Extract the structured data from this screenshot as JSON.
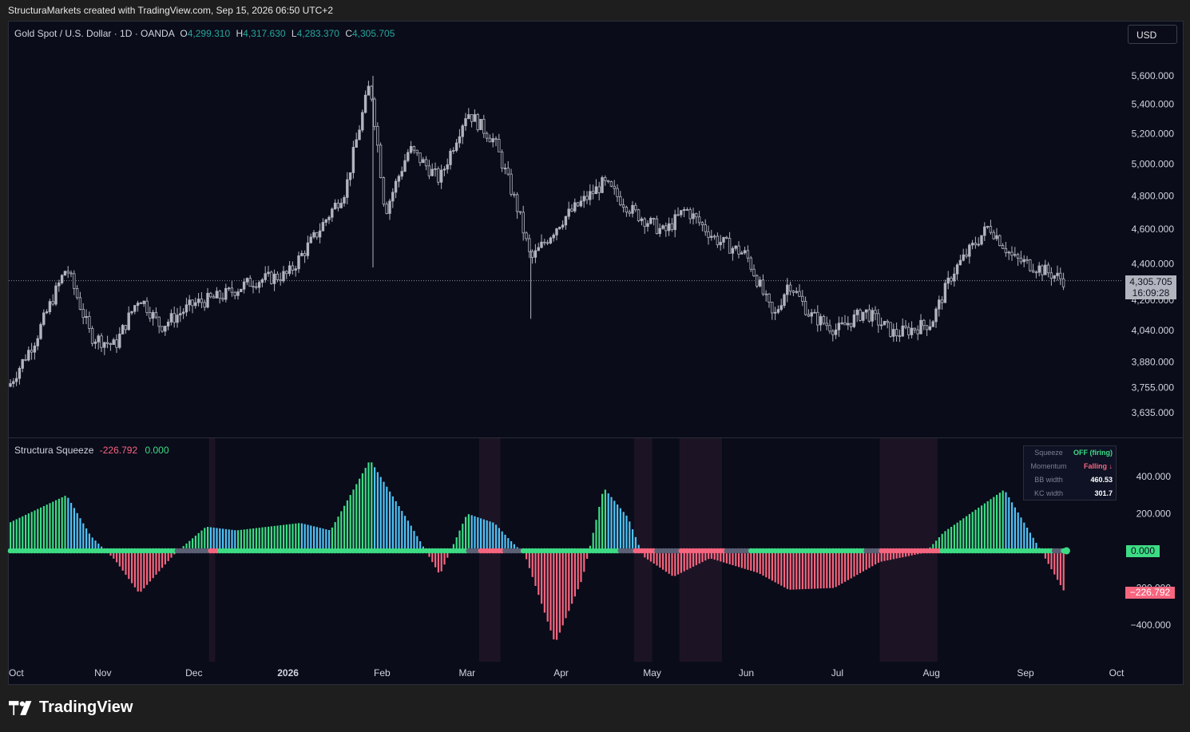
{
  "header": {
    "attribution": "StructuraMarkets created with TradingView.com, Sep 15, 2026 06:50 UTC+2"
  },
  "symbol": {
    "title": "Gold Spot / U.S. Dollar · 1D · OANDA",
    "o_label": "O",
    "o": "4,299.310",
    "h_label": "H",
    "h": "4,317.630",
    "l_label": "L",
    "l": "4,283.370",
    "c_label": "C",
    "c": "4,305.705"
  },
  "currency_button": "USD",
  "price_badge": {
    "price": "4,305.705",
    "countdown": "16:09:28"
  },
  "indicator": {
    "name": "Structura Squeeze",
    "value1": "-226.792",
    "value2": "0.000"
  },
  "indicator_badges": {
    "zero": "0.000",
    "current": "−226.792"
  },
  "squeeze_panel": {
    "rows": [
      {
        "label": "Squeeze",
        "value": "OFF (firing)",
        "color": "#3ddc84"
      },
      {
        "label": "Momentum",
        "value": "Falling ↓",
        "color": "#f7657f"
      },
      {
        "label": "BB width",
        "value": "460.53",
        "color": "#ffffff"
      },
      {
        "label": "KC width",
        "value": "301.7",
        "color": "#ffffff"
      }
    ]
  },
  "brand": {
    "name": "TradingView"
  },
  "colors": {
    "bg": "#0a0c1a",
    "candle": "#b2b5be",
    "pos_strong": "#3ddc84",
    "pos_weak": "#4fc3f7",
    "neg": "#f7657f",
    "squeeze_on": "#5c6075",
    "shade": "#1c1424"
  },
  "chart_data": [
    {
      "type": "candlestick",
      "title": "Gold Spot / U.S. Dollar · 1D · OANDA",
      "y_axis": {
        "scale": "log",
        "ticks": [
          "5,600.000",
          "5,400.000",
          "5,200.000",
          "5,000.000",
          "4,800.000",
          "4,600.000",
          "4,400.000",
          "4,200.000",
          "4,040.000",
          "3,880.000",
          "3,755.000",
          "3,635.000"
        ],
        "tick_values": [
          5600,
          5400,
          5200,
          5000,
          4800,
          4600,
          4400,
          4200,
          4040,
          3880,
          3755,
          3635
        ]
      },
      "x_axis": {
        "ticks": [
          "Oct",
          "Nov",
          "Dec",
          "2026",
          "Feb",
          "Mar",
          "Apr",
          "May",
          "Jun",
          "Jul",
          "Aug",
          "Sep",
          "Oct"
        ]
      },
      "close_path": [
        [
          "2025-10-01",
          3760
        ],
        [
          "2025-10-10",
          4000
        ],
        [
          "2025-10-20",
          4380
        ],
        [
          "2025-10-28",
          4010
        ],
        [
          "2025-11-05",
          3960
        ],
        [
          "2025-11-13",
          4220
        ],
        [
          "2025-11-20",
          4060
        ],
        [
          "2025-12-01",
          4180
        ],
        [
          "2025-12-10",
          4220
        ],
        [
          "2025-12-20",
          4300
        ],
        [
          "2026-01-01",
          4340
        ],
        [
          "2026-01-10",
          4560
        ],
        [
          "2026-01-20",
          4840
        ],
        [
          "2026-01-28",
          5550
        ],
        [
          "2026-02-02",
          4700
        ],
        [
          "2026-02-10",
          5100
        ],
        [
          "2026-02-20",
          4900
        ],
        [
          "2026-03-01",
          5350
        ],
        [
          "2026-03-10",
          5150
        ],
        [
          "2026-03-18",
          4700
        ],
        [
          "2026-03-22",
          4420
        ],
        [
          "2026-04-01",
          4650
        ],
        [
          "2026-04-15",
          4880
        ],
        [
          "2026-04-25",
          4700
        ],
        [
          "2026-05-05",
          4580
        ],
        [
          "2026-05-12",
          4720
        ],
        [
          "2026-05-22",
          4540
        ],
        [
          "2026-06-01",
          4450
        ],
        [
          "2026-06-10",
          4100
        ],
        [
          "2026-06-15",
          4300
        ],
        [
          "2026-06-22",
          4120
        ],
        [
          "2026-07-01",
          4040
        ],
        [
          "2026-07-10",
          4140
        ],
        [
          "2026-07-20",
          4020
        ],
        [
          "2026-08-01",
          4080
        ],
        [
          "2026-08-08",
          4350
        ],
        [
          "2026-08-20",
          4620
        ],
        [
          "2026-08-28",
          4430
        ],
        [
          "2026-09-05",
          4380
        ],
        [
          "2026-09-14",
          4305.705
        ]
      ]
    },
    {
      "type": "bar",
      "title": "Structura Squeeze",
      "y_axis": {
        "ticks": [
          "400.000",
          "200.000",
          "0.000",
          "−200.000",
          "−400.000"
        ],
        "tick_values": [
          400,
          200,
          0,
          -200,
          -400
        ]
      },
      "momentum_path": [
        [
          "2025-10-01",
          150
        ],
        [
          "2025-10-20",
          300
        ],
        [
          "2025-10-28",
          80
        ],
        [
          "2025-11-05",
          -50
        ],
        [
          "2025-11-13",
          -230
        ],
        [
          "2025-11-25",
          -10
        ],
        [
          "2025-12-05",
          130
        ],
        [
          "2025-12-15",
          110
        ],
        [
          "2026-01-05",
          150
        ],
        [
          "2026-01-15",
          110
        ],
        [
          "2026-01-28",
          490
        ],
        [
          "2026-02-10",
          150
        ],
        [
          "2026-02-20",
          -130
        ],
        [
          "2026-03-01",
          200
        ],
        [
          "2026-03-10",
          150
        ],
        [
          "2026-03-15",
          60
        ],
        [
          "2026-03-20",
          -20
        ],
        [
          "2026-03-30",
          -500
        ],
        [
          "2026-04-08",
          -150
        ],
        [
          "2026-04-15",
          340
        ],
        [
          "2026-04-23",
          180
        ],
        [
          "2026-04-28",
          -30
        ],
        [
          "2026-05-08",
          -140
        ],
        [
          "2026-05-20",
          -40
        ],
        [
          "2026-06-05",
          -120
        ],
        [
          "2026-06-15",
          -210
        ],
        [
          "2026-06-30",
          -200
        ],
        [
          "2026-07-15",
          -60
        ],
        [
          "2026-07-30",
          -10
        ],
        [
          "2026-08-05",
          100
        ],
        [
          "2026-08-25",
          330
        ],
        [
          "2026-09-05",
          30
        ],
        [
          "2026-09-14",
          -226.792
        ]
      ]
    }
  ]
}
